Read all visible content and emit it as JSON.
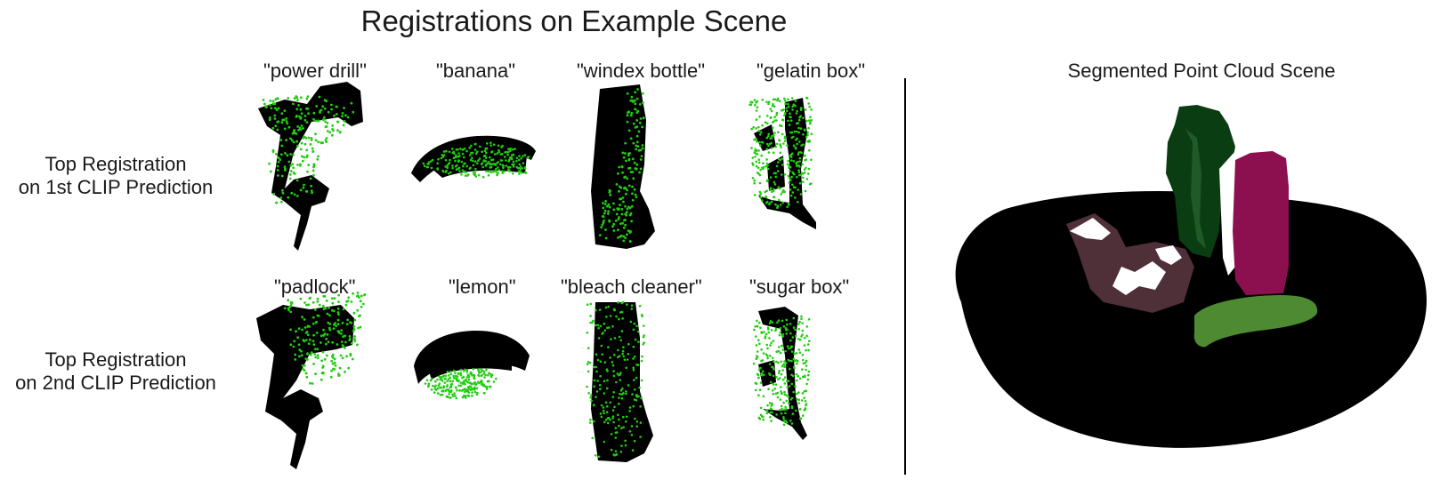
{
  "title": "Registrations on Example Scene",
  "rows": [
    {
      "label_line1": "Top Registration",
      "label_line2": "on 1st CLIP Prediction",
      "objects": [
        "\"power drill\"",
        "\"banana\"",
        "\"windex bottle\"",
        "\"gelatin box\""
      ]
    },
    {
      "label_line1": "Top Registration",
      "label_line2": "on 2nd CLIP Prediction",
      "objects": [
        "\"padlock\"",
        "\"lemon\"",
        "\"bleach cleaner\"",
        "\"sugar box\""
      ]
    }
  ],
  "scene_title": "Segmented Point Cloud Scene",
  "colors": {
    "observed_points": "#000000",
    "registered_points": "#22cc11",
    "scene_background": "#000000",
    "drill_segment": "#0b3d12",
    "bottle_segment": "#8c1050",
    "banana_segment": "#4e8a32",
    "box_segment": "#4f2f38"
  }
}
